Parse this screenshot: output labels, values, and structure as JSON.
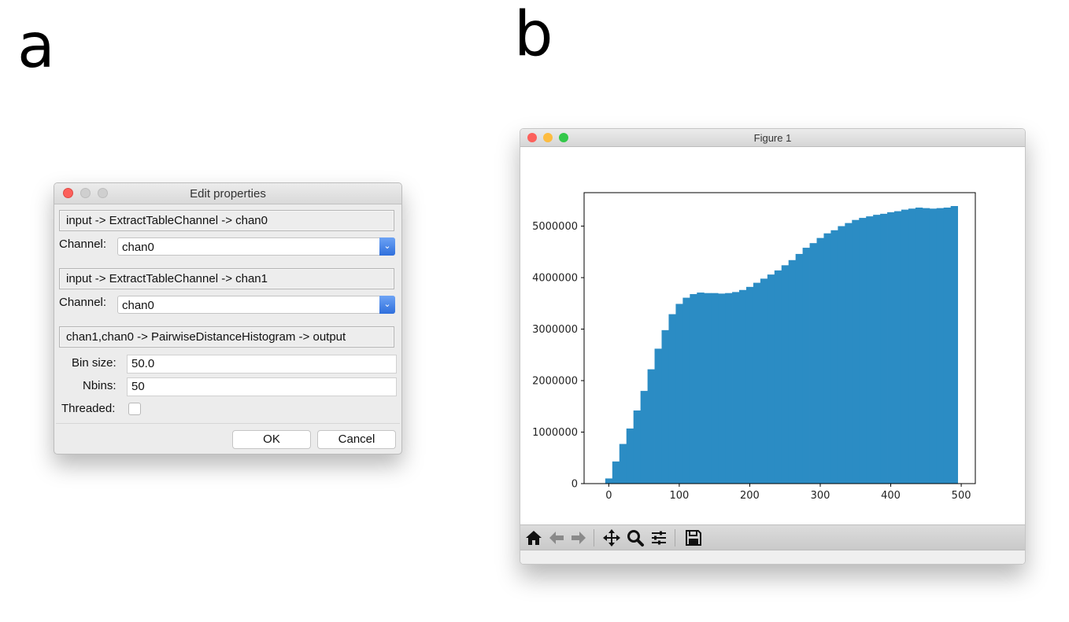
{
  "panel_labels": {
    "a": "a",
    "b": "b"
  },
  "dialog": {
    "title": "Edit properties",
    "sections": [
      {
        "header": "input -> ExtractTableChannel -> chan0",
        "channel_label": "Channel:",
        "channel_value": "chan0"
      },
      {
        "header": "input -> ExtractTableChannel -> chan1",
        "channel_label": "Channel:",
        "channel_value": "chan0"
      }
    ],
    "histogram": {
      "header": "chan1,chan0 -> PairwiseDistanceHistogram -> output",
      "bin_size_label": "Bin size:",
      "bin_size_value": "50.0",
      "nbins_label": "Nbins:",
      "nbins_value": "50",
      "threaded_label": "Threaded:",
      "threaded_checked": false
    },
    "ok_label": "OK",
    "cancel_label": "Cancel"
  },
  "figure_window": {
    "title": "Figure 1",
    "toolbar_icons": [
      "home-icon",
      "back-arrow-icon",
      "forward-arrow-icon",
      "pan-icon",
      "zoom-icon",
      "subplots-icon",
      "save-icon"
    ]
  },
  "colors": {
    "bar": "#2b8cc4",
    "close_red": "#fc605b",
    "minimize_yellow": "#fdbc40",
    "zoom_green": "#34c84a",
    "inactive_gray": "#cfcfcf",
    "combo_blue": "#3a78e0"
  },
  "chart_data": {
    "type": "bar",
    "title": "",
    "xlabel": "",
    "ylabel": "",
    "bin_width": 10,
    "x": [
      0,
      10,
      20,
      30,
      40,
      50,
      60,
      70,
      80,
      90,
      100,
      110,
      120,
      130,
      140,
      150,
      160,
      170,
      180,
      190,
      200,
      210,
      220,
      230,
      240,
      250,
      260,
      270,
      280,
      290,
      300,
      310,
      320,
      330,
      340,
      350,
      360,
      370,
      380,
      390,
      400,
      410,
      420,
      430,
      440,
      450,
      460,
      470,
      480,
      490
    ],
    "values": [
      100000,
      430000,
      770000,
      1070000,
      1420000,
      1800000,
      2220000,
      2620000,
      2980000,
      3290000,
      3490000,
      3610000,
      3680000,
      3710000,
      3700000,
      3700000,
      3690000,
      3700000,
      3720000,
      3760000,
      3820000,
      3900000,
      3980000,
      4060000,
      4140000,
      4240000,
      4340000,
      4460000,
      4580000,
      4670000,
      4770000,
      4860000,
      4920000,
      5000000,
      5060000,
      5120000,
      5160000,
      5190000,
      5220000,
      5240000,
      5270000,
      5290000,
      5320000,
      5340000,
      5360000,
      5350000,
      5340000,
      5350000,
      5360000,
      5390000
    ],
    "xlim": [
      -35,
      520
    ],
    "ylim": [
      0,
      5650000
    ],
    "xticks": [
      0,
      100,
      200,
      300,
      400,
      500
    ],
    "yticks": [
      0,
      1000000,
      2000000,
      3000000,
      4000000,
      5000000
    ],
    "grid": false
  }
}
